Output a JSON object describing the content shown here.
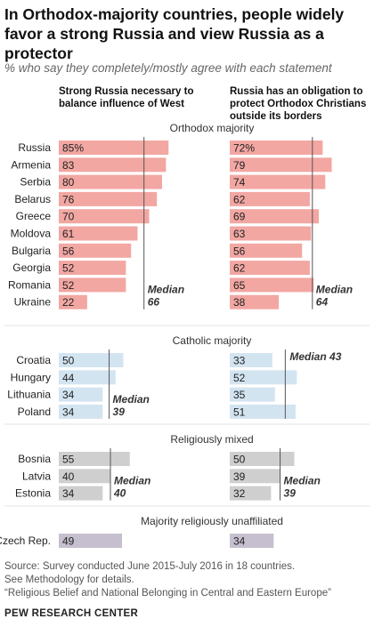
{
  "title": "In Orthodox-majority countries, people widely favor a strong Russia and view Russia as a protector",
  "subtitle": "% who say they completely/mostly agree with each statement",
  "columns": [
    "Strong Russia necessary to balance influence of West",
    "Russia has an obligation to protect Orthodox Christians outside its borders"
  ],
  "chart_data": {
    "type": "bar",
    "orientation": "horizontal",
    "xlim": [
      0,
      100
    ],
    "series_names": [
      "Strong Russia necessary to balance influence of West",
      "Russia has an obligation to protect Orthodox Christians outside its borders"
    ],
    "groups": [
      {
        "name": "Orthodox majority",
        "color": "#f2a7a2",
        "countries": [
          "Russia",
          "Armenia",
          "Serbia",
          "Belarus",
          "Greece",
          "Moldova",
          "Bulgaria",
          "Georgia",
          "Romania",
          "Ukraine"
        ],
        "values": [
          [
            85,
            72
          ],
          [
            83,
            79
          ],
          [
            80,
            74
          ],
          [
            76,
            62
          ],
          [
            70,
            69
          ],
          [
            61,
            63
          ],
          [
            56,
            56
          ],
          [
            52,
            62
          ],
          [
            52,
            65
          ],
          [
            22,
            38
          ]
        ],
        "medians": [
          66,
          64
        ],
        "median_labels": [
          [
            "Median",
            "66"
          ],
          [
            "Median",
            "64"
          ]
        ]
      },
      {
        "name": "Catholic majority",
        "color": "#d3e4f1",
        "countries": [
          "Croatia",
          "Hungary",
          "Lithuania",
          "Poland"
        ],
        "values": [
          [
            50,
            33
          ],
          [
            44,
            52
          ],
          [
            34,
            35
          ],
          [
            34,
            51
          ]
        ],
        "medians": [
          39,
          43
        ],
        "median_labels": [
          [
            "Median",
            "39"
          ],
          [
            "Median 43"
          ]
        ]
      },
      {
        "name": "Religiously mixed",
        "color": "#cfcfcf",
        "countries": [
          "Bosnia",
          "Latvia",
          "Estonia"
        ],
        "values": [
          [
            55,
            50
          ],
          [
            40,
            39
          ],
          [
            34,
            32
          ]
        ],
        "medians": [
          40,
          39
        ],
        "median_labels": [
          [
            "Median",
            "40"
          ],
          [
            "Median",
            "39"
          ]
        ]
      },
      {
        "name": "Majority religiously unaffiliated",
        "color": "#c5bfcf",
        "countries": [
          "Czech Rep."
        ],
        "values": [
          [
            49,
            34
          ]
        ],
        "medians": [],
        "median_labels": []
      }
    ]
  },
  "footer": {
    "source": "Source: Survey conducted June 2015-July 2016 in 18 countries.",
    "methodology": "See Methodology for details.",
    "report": "“Religious Belief and National Belonging in Central and Eastern Europe”",
    "brand": "PEW RESEARCH CENTER"
  }
}
